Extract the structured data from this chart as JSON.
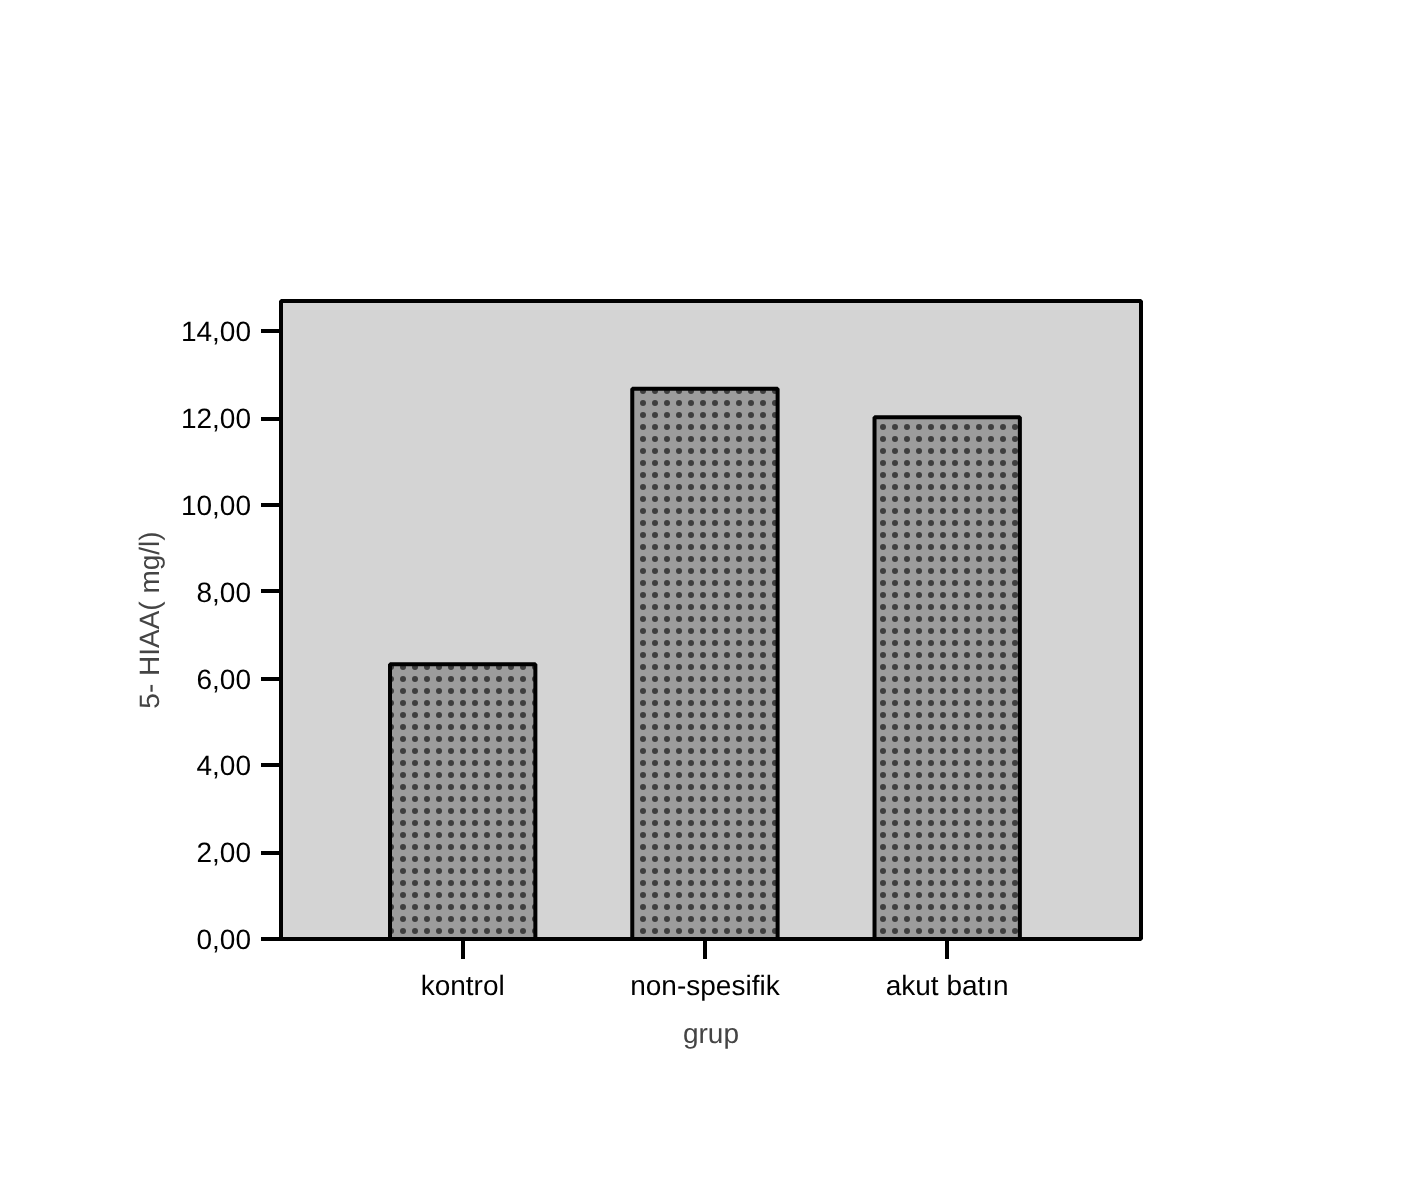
{
  "chart_data": {
    "type": "bar",
    "xlabel": "grup",
    "ylabel": "5- HIAA( mg/l)",
    "categories": [
      "kontrol",
      "non-spesifik",
      "akut batın"
    ],
    "values": [
      6.33,
      12.68,
      12.02
    ],
    "color": "#9c9c9c",
    "ylim": [
      0,
      14.7
    ],
    "yticks": [
      {
        "value": 0,
        "label": "0,00"
      },
      {
        "value": 2,
        "label": "2,00"
      },
      {
        "value": 4,
        "label": "4,00"
      },
      {
        "value": 6,
        "label": "6,00"
      },
      {
        "value": 8,
        "label": "8,00"
      },
      {
        "value": 10,
        "label": "10,00"
      },
      {
        "value": 12,
        "label": "12,00"
      },
      {
        "value": 14,
        "label": "14,00"
      }
    ],
    "grid": false
  }
}
